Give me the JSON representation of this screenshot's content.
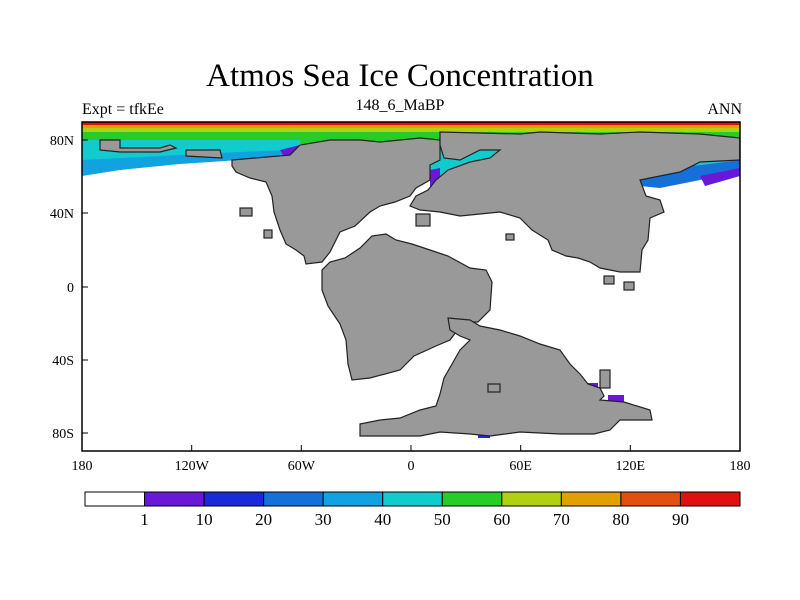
{
  "title": "Atmos Sea Ice Concentration",
  "subtitle_left": "Expt = tfkEe",
  "subtitle_center": "148_6_MaBP",
  "subtitle_right": "ANN",
  "axes": {
    "x_ticks": [
      "180",
      "120W",
      "60W",
      "0",
      "60E",
      "120E",
      "180"
    ],
    "y_ticks": [
      "80N",
      "40N",
      "0",
      "40S",
      "80S"
    ]
  },
  "colorbar": {
    "labels": [
      "1",
      "10",
      "20",
      "30",
      "40",
      "50",
      "60",
      "70",
      "80",
      "90"
    ],
    "colors": [
      "#ffffff",
      "#6a18d8",
      "#1a2ad8",
      "#1570d8",
      "#10a3e0",
      "#10cccc",
      "#28cc28",
      "#b0d010",
      "#e0a000",
      "#e05010",
      "#e01010"
    ]
  },
  "colors": {
    "land": "#999999",
    "ocean": "#ffffff"
  }
}
